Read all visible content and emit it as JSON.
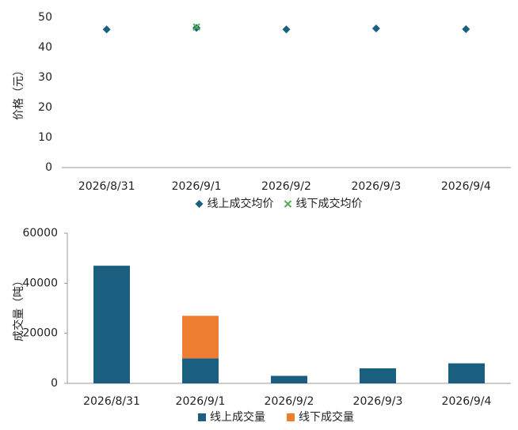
{
  "chart_data": [
    {
      "type": "scatter",
      "y_label": "价格（元）",
      "categories": [
        "2026/8/31",
        "2026/9/1",
        "2026/9/2",
        "2026/9/3",
        "2026/9/4"
      ],
      "series": [
        {
          "name": "线上成交均价",
          "color": "#1a5e80",
          "marker": "diamond",
          "values": [
            46,
            46.5,
            46,
            46.3,
            46.1
          ]
        },
        {
          "name": "线下成交均价",
          "color": "#4caf50",
          "marker": "x",
          "values": [
            null,
            46.8,
            null,
            null,
            null
          ]
        }
      ],
      "ylim": [
        0,
        50
      ],
      "yticks": [
        0,
        10,
        20,
        30,
        40,
        50
      ],
      "grid": false
    },
    {
      "type": "stacked-bar",
      "y_label": "成交量（吨）",
      "categories": [
        "2026/8/31",
        "2026/9/1",
        "2026/9/2",
        "2026/9/3",
        "2026/9/4"
      ],
      "series": [
        {
          "name": "线上成交量",
          "color": "#1a5e80",
          "marker": "square",
          "values": [
            47000,
            10000,
            3000,
            6000,
            8000
          ]
        },
        {
          "name": "线下成交量",
          "color": "#ed7d31",
          "marker": "square",
          "values": [
            null,
            17000,
            null,
            null,
            null
          ]
        }
      ],
      "ylim": [
        0,
        60000
      ],
      "yticks": [
        0,
        20000,
        40000,
        60000
      ],
      "grid": false
    }
  ]
}
